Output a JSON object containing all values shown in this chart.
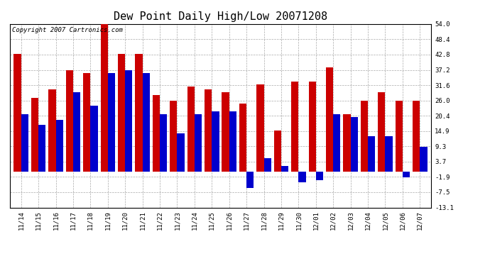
{
  "title": "Dew Point Daily High/Low 20071208",
  "copyright": "Copyright 2007 Cartronics.com",
  "dates": [
    "11/14",
    "11/15",
    "11/16",
    "11/17",
    "11/18",
    "11/19",
    "11/20",
    "11/21",
    "11/22",
    "11/23",
    "11/24",
    "11/25",
    "11/26",
    "11/27",
    "11/28",
    "11/29",
    "11/30",
    "12/01",
    "12/02",
    "12/03",
    "12/04",
    "12/05",
    "12/06",
    "12/07"
  ],
  "highs": [
    43.0,
    27.0,
    30.0,
    37.0,
    36.0,
    54.0,
    43.0,
    43.0,
    28.0,
    26.0,
    31.0,
    30.0,
    29.0,
    25.0,
    32.0,
    15.0,
    33.0,
    33.0,
    38.0,
    21.0,
    26.0,
    29.0,
    26.0,
    26.0
  ],
  "lows": [
    21.0,
    17.0,
    19.0,
    29.0,
    24.0,
    36.0,
    37.0,
    36.0,
    21.0,
    14.0,
    21.0,
    22.0,
    22.0,
    -6.0,
    5.0,
    2.0,
    -4.0,
    -3.0,
    21.0,
    20.0,
    13.0,
    13.0,
    -2.0,
    9.0
  ],
  "high_color": "#cc0000",
  "low_color": "#0000cc",
  "bg_color": "#ffffff",
  "plot_bg_color": "#ffffff",
  "grid_color": "#aaaaaa",
  "yticks": [
    54.0,
    48.4,
    42.8,
    37.2,
    31.6,
    26.0,
    20.4,
    14.9,
    9.3,
    3.7,
    -1.9,
    -7.5,
    -13.1
  ],
  "ymin": -13.1,
  "ymax": 54.0,
  "title_fontsize": 11,
  "copyright_fontsize": 6.5,
  "tick_fontsize": 6.5,
  "bar_width": 0.42,
  "fig_width": 6.9,
  "fig_height": 3.75,
  "fig_dpi": 100
}
